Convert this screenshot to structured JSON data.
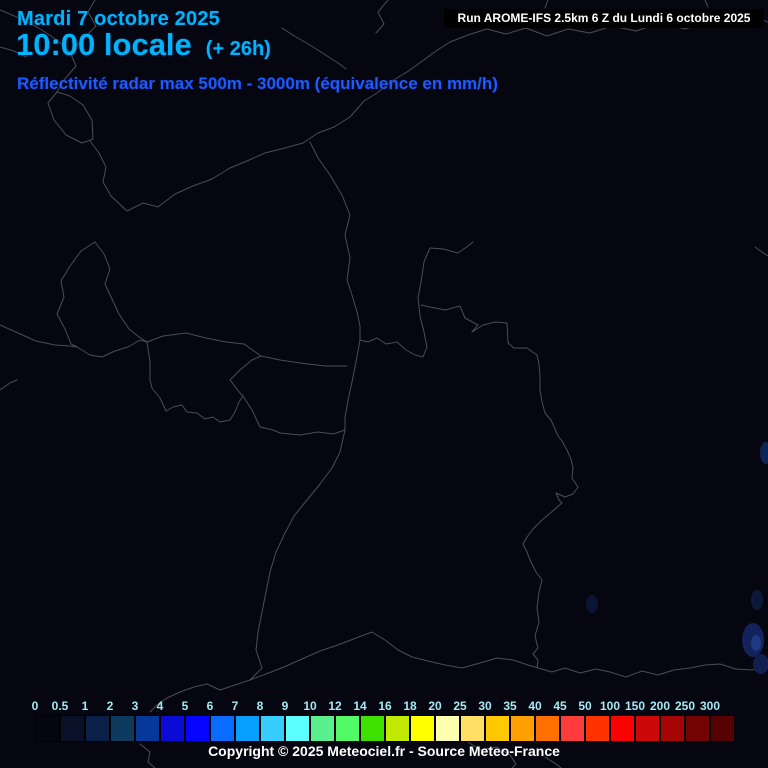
{
  "header": {
    "date": "Mardi 7 octobre 2025",
    "time": "10:00 locale",
    "offset": "(+ 26h)",
    "run": "Run AROME-IFS 2.5km 6 Z du Lundi 6 octobre 2025",
    "subtitle": "Réflectivité radar max 500m - 3000m (équivalence en mm/h)"
  },
  "scale": {
    "unit_labels": [
      "0",
      "0.5",
      "1",
      "2",
      "3",
      "4",
      "5",
      "6",
      "7",
      "8",
      "9",
      "10",
      "12",
      "14",
      "16",
      "18",
      "20",
      "25",
      "30",
      "35",
      "40",
      "45",
      "50",
      "100",
      "150",
      "200",
      "250",
      "300"
    ],
    "box_colors": [
      "#04060f",
      "#081127",
      "#0b2048",
      "#0e3a60",
      "#06389a",
      "#0b0bd6",
      "#0505ff",
      "#0a6cff",
      "#069fff",
      "#38cdff",
      "#5cffff",
      "#59f08d",
      "#52fa66",
      "#3ee000",
      "#c0e800",
      "#ffff00",
      "#ffffb0",
      "#ffdf66",
      "#ffc800",
      "#ffa000",
      "#ff7000",
      "#ff3c3c",
      "#ff3300",
      "#fe0000",
      "#cc0808",
      "#a50505",
      "#740404",
      "#560202"
    ]
  },
  "footer": {
    "copyright": "Copyright © 2025 Meteociel.fr - Source Meteo-France"
  },
  "colors": {
    "header_cyan": "#00b4fa",
    "subtitle_blue": "#1e5aff",
    "scale_label_cyan": "#a5e9f5",
    "map_background": "#060610",
    "border_line_gray": "#54545e"
  }
}
